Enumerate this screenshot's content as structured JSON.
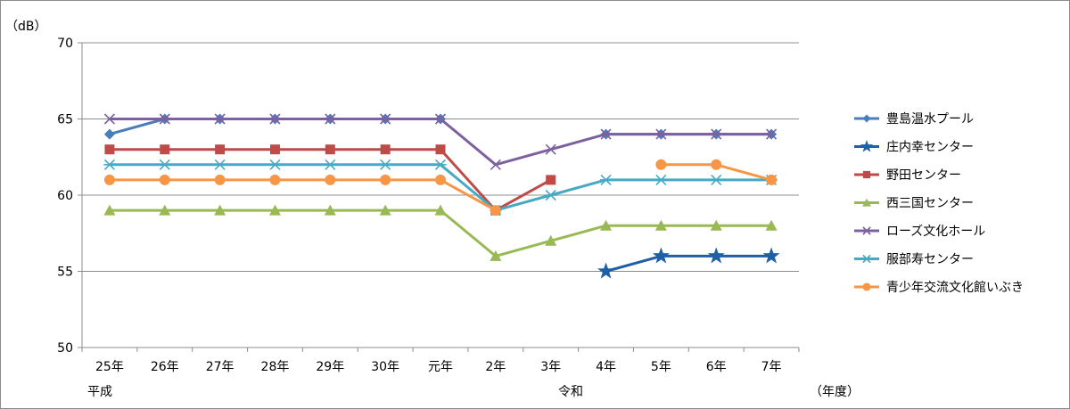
{
  "chart_data": {
    "type": "line",
    "ylabel": "（dB）",
    "xlabel": "（年度）",
    "era_labels": [
      "平成",
      "令和"
    ],
    "ylim": [
      50,
      70
    ],
    "yticks": [
      50,
      55,
      60,
      65,
      70
    ],
    "ytick_labels": [
      "50",
      "55",
      "60",
      "65",
      "70"
    ],
    "grid": true,
    "legend_position": "right",
    "categories": [
      "25年",
      "26年",
      "27年",
      "28年",
      "29年",
      "30年",
      "元年",
      "2年",
      "3年",
      "4年",
      "5年",
      "6年",
      "7年"
    ],
    "series": [
      {
        "name": "豊島温水プール",
        "color": "#4a7ebb",
        "marker": "diamond",
        "values": [
          64,
          65,
          65,
          65,
          65,
          65,
          65,
          null,
          null,
          64,
          64,
          64,
          64
        ]
      },
      {
        "name": "庄内幸センター",
        "color": "#1f5fa8",
        "marker": "star",
        "values": [
          null,
          null,
          null,
          null,
          null,
          null,
          null,
          null,
          null,
          55,
          56,
          56,
          56
        ]
      },
      {
        "name": "野田センター",
        "color": "#be4b48",
        "marker": "square",
        "values": [
          63,
          63,
          63,
          63,
          63,
          63,
          63,
          59,
          61,
          null,
          null,
          null,
          null
        ]
      },
      {
        "name": "西三国センター",
        "color": "#98b954",
        "marker": "triangle",
        "values": [
          59,
          59,
          59,
          59,
          59,
          59,
          59,
          56,
          57,
          58,
          58,
          58,
          58
        ]
      },
      {
        "name": "ローズ文化ホール",
        "color": "#7d60a0",
        "marker": "x",
        "values": [
          65,
          65,
          65,
          65,
          65,
          65,
          65,
          62,
          63,
          64,
          64,
          64,
          64
        ]
      },
      {
        "name": "服部寿センター",
        "color": "#46aac5",
        "marker": "asterisk",
        "values": [
          62,
          62,
          62,
          62,
          62,
          62,
          62,
          59,
          60,
          61,
          61,
          61,
          61
        ]
      },
      {
        "name": "青少年交流文化館いぶき",
        "color": "#f79646",
        "marker": "circle",
        "values": [
          61,
          61,
          61,
          61,
          61,
          61,
          61,
          59,
          null,
          null,
          62,
          62,
          61
        ]
      }
    ]
  }
}
